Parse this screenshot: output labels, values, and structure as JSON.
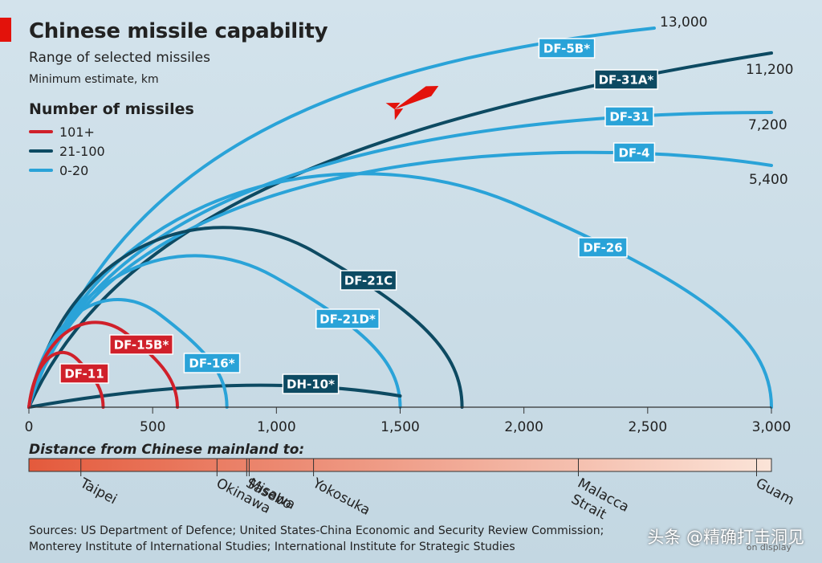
{
  "header": {
    "title": "Chinese missile capability",
    "subtitle": "Range of selected missiles",
    "unit_note": "Minimum estimate, km"
  },
  "legend": {
    "title": "Number of missiles",
    "items": [
      {
        "label": "101+",
        "color": "#d0202a"
      },
      {
        "label": "21-100",
        "color": "#0d4a62"
      },
      {
        "label": "0-20",
        "color": "#2aa3d8"
      }
    ]
  },
  "chart_data": {
    "type": "line",
    "xlim": [
      0,
      3000
    ],
    "x_ticks": [
      "0",
      "500",
      "1,000",
      "1,500",
      "2,000",
      "2,500",
      "3,000"
    ],
    "x_tick_values": [
      0,
      500,
      1000,
      1500,
      2000,
      2500,
      3000
    ],
    "missiles": [
      {
        "name": "DF-11",
        "range_km": 300,
        "count_group": "101+",
        "color": "#d0202a"
      },
      {
        "name": "DF-15B*",
        "range_km": 600,
        "count_group": "101+",
        "color": "#d0202a"
      },
      {
        "name": "DF-16*",
        "range_km": 800,
        "count_group": "0-20",
        "color": "#2aa3d8"
      },
      {
        "name": "DH-10*",
        "range_km": 1500,
        "count_group": "21-100",
        "color": "#0d4a62"
      },
      {
        "name": "DF-21D*",
        "range_km": 1500,
        "count_group": "0-20",
        "color": "#2aa3d8"
      },
      {
        "name": "DF-21C",
        "range_km": 1750,
        "count_group": "21-100",
        "color": "#0d4a62"
      },
      {
        "name": "DF-26",
        "range_km": 3000,
        "count_group": "0-20",
        "color": "#2aa3d8"
      },
      {
        "name": "DF-4",
        "range_km": 5400,
        "count_group": "0-20",
        "color": "#2aa3d8"
      },
      {
        "name": "DF-31",
        "range_km": 7200,
        "count_group": "0-20",
        "color": "#2aa3d8"
      },
      {
        "name": "DF-31A*",
        "range_km": 11200,
        "count_group": "21-100",
        "color": "#0d4a62"
      },
      {
        "name": "DF-5B*",
        "range_km": 13000,
        "count_group": "0-20",
        "color": "#2aa3d8"
      }
    ],
    "range_labels": [
      "13,000",
      "11,200",
      "7,200",
      "5,400"
    ],
    "distance_bar": {
      "title": "Distance from Chinese mainland to:",
      "places": [
        {
          "name": "Taipei",
          "km": 210
        },
        {
          "name": "Okinawa",
          "km": 760
        },
        {
          "name": "Sasebo",
          "km": 880
        },
        {
          "name": "Misawa",
          "km": 890
        },
        {
          "name": "Yokosuka",
          "km": 1150
        },
        {
          "name": "Malacca Strait",
          "km": 2220
        },
        {
          "name": "Guam",
          "km": 2940
        }
      ]
    }
  },
  "footer": {
    "sources_line1": "Sources: US Department of Defence; United States-China Economic and Security Review Commission;",
    "sources_line2": "Monterey Institute of International Studies; International Institute for Strategic Studies",
    "watermark": "头条 @精确打击洞见",
    "watermark_sub": "on display"
  }
}
